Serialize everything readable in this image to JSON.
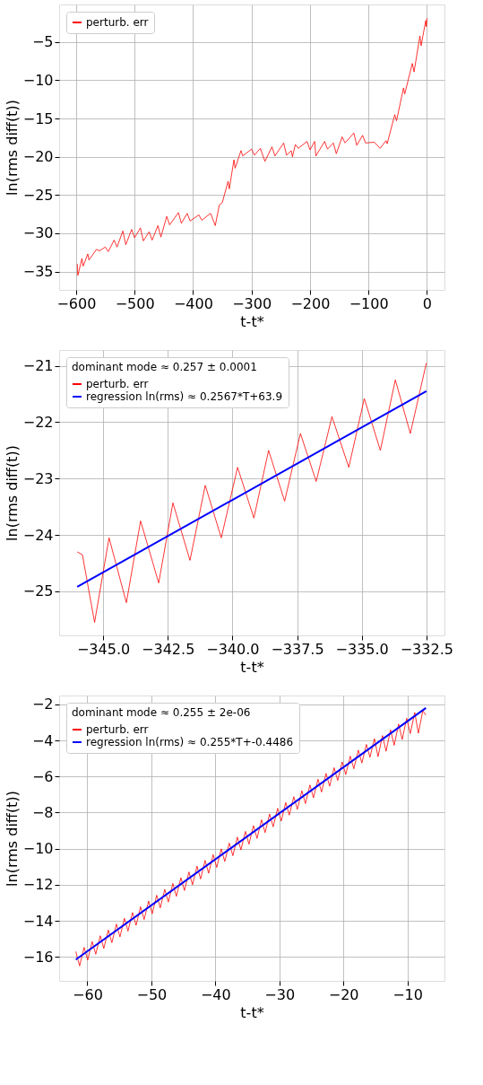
{
  "chart_data": [
    {
      "type": "line",
      "xlabel": "t-t*",
      "ylabel": "ln(rms diff(t))",
      "xlim": [
        -629,
        30
      ],
      "ylim": [
        -37.4,
        -0.1
      ],
      "xticks": [
        -600,
        -500,
        -400,
        -300,
        -200,
        -100,
        0
      ],
      "yticks": [
        -35,
        -30,
        -25,
        -20,
        -15,
        -10,
        -5
      ],
      "grid": true,
      "legend": "top left",
      "series": [
        {
          "name": "perturb. err",
          "color": "#ff0000",
          "x": [
            -598,
            -597,
            -590,
            -588,
            -580,
            -578,
            -565,
            -560,
            -550,
            -545,
            -535,
            -530,
            -520,
            -515,
            -505,
            -500,
            -490,
            -485,
            -475,
            -470,
            -460,
            -455,
            -445,
            -440,
            -425,
            -420,
            -410,
            -405,
            -390,
            -385,
            -370,
            -362,
            -355,
            -350,
            -340,
            -338,
            -330,
            -328,
            -318,
            -315,
            -300,
            -295,
            -285,
            -277,
            -265,
            -260,
            -245,
            -240,
            -232,
            -230,
            -225,
            -220,
            -205,
            -200,
            -192,
            -190,
            -175,
            -170,
            -160,
            -155,
            -145,
            -140,
            -125,
            -120,
            -110,
            -105,
            -90,
            -80,
            -70,
            -68,
            -55,
            -52,
            -40,
            -38,
            -25,
            -22,
            -12,
            -10,
            -2,
            -1,
            0
          ],
          "values": [
            -34.0,
            -35.5,
            -33.3,
            -34.3,
            -32.7,
            -33.5,
            -32.1,
            -32.3,
            -31.8,
            -32.4,
            -30.9,
            -31.8,
            -29.7,
            -31.5,
            -29.5,
            -30.6,
            -29.3,
            -31.0,
            -29.8,
            -30.9,
            -29.0,
            -30.5,
            -27.8,
            -28.9,
            -27.3,
            -28.7,
            -27.4,
            -28.4,
            -27.6,
            -28.3,
            -27.4,
            -29.0,
            -26.3,
            -26.0,
            -23.2,
            -24.2,
            -20.4,
            -21.5,
            -19.2,
            -19.9,
            -19.0,
            -19.8,
            -18.9,
            -20.6,
            -18.7,
            -19.9,
            -18.2,
            -19.8,
            -19.2,
            -20.0,
            -18.4,
            -18.9,
            -18.0,
            -19.1,
            -18.0,
            -19.9,
            -18.0,
            -19.0,
            -18.2,
            -19.6,
            -17.4,
            -18.2,
            -16.9,
            -18.5,
            -17.2,
            -18.2,
            -18.1,
            -18.9,
            -17.9,
            -18.3,
            -14.5,
            -15.3,
            -11.0,
            -11.8,
            -7.8,
            -8.9,
            -4.2,
            -5.5,
            -2.2,
            -3.0,
            -1.9
          ]
        }
      ]
    },
    {
      "type": "line",
      "xlabel": "t-t*",
      "ylabel": "ln(rms diff(t))",
      "xlim": [
        -346.7,
        -331.8
      ],
      "ylim": [
        -25.78,
        -20.72
      ],
      "xticks": [
        {
          "value": -345,
          "label": "−345.0"
        },
        {
          "value": -342.5,
          "label": "−342.5"
        },
        {
          "value": -340,
          "label": "−340.0"
        },
        {
          "value": -337.5,
          "label": "−337.5"
        },
        {
          "value": -335,
          "label": "−335.0"
        },
        {
          "value": -332.5,
          "label": "−332.5"
        }
      ],
      "yticks": [
        -25,
        -24,
        -23,
        -22,
        -21
      ],
      "grid": true,
      "legend": "top left",
      "legend_title": "dominant mode ≈ 0.257 ± 0.0001",
      "series": [
        {
          "name": "perturb. err",
          "color": "#ff0000",
          "x": [
            -346.0,
            -345.8,
            -345.33,
            -344.77,
            -344.1,
            -343.55,
            -342.85,
            -342.3,
            -341.64,
            -341.05,
            -340.43,
            -339.8,
            -339.17,
            -338.6,
            -337.98,
            -337.37,
            -336.76,
            -336.15,
            -335.5,
            -334.9,
            -334.28,
            -333.7,
            -333.12,
            -332.5
          ],
          "values": [
            -24.3,
            -24.35,
            -25.55,
            -24.05,
            -25.2,
            -23.75,
            -24.85,
            -23.43,
            -24.45,
            -23.12,
            -24.05,
            -22.8,
            -23.7,
            -22.5,
            -23.4,
            -22.2,
            -23.05,
            -21.9,
            -22.8,
            -21.58,
            -22.5,
            -21.25,
            -22.2,
            -20.95
          ]
        },
        {
          "name": "regression ln(rms) ≈ 0.2567*T+63.9",
          "color": "#0000ff",
          "x": [
            -346.0,
            -332.5
          ],
          "values": [
            -24.92,
            -21.45
          ]
        }
      ]
    },
    {
      "type": "line",
      "xlabel": "t-t*",
      "ylabel": "ln(rms diff(t))",
      "xlim": [
        -64.4,
        -4.2
      ],
      "ylim": [
        -17.33,
        -1.51
      ],
      "xticks": [
        -60,
        -50,
        -40,
        -30,
        -20,
        -10
      ],
      "yticks": [
        -16,
        -14,
        -12,
        -10,
        -8,
        -6,
        -4,
        -2
      ],
      "grid": true,
      "legend": "top left",
      "legend_title": "dominant mode ≈ 0.255 ± 2e-06",
      "series": [
        {
          "name": "perturb. err",
          "color": "#ff0000",
          "x": [
            -61.8,
            -61.2,
            -60.5,
            -59.94,
            -59.24,
            -58.68,
            -57.98,
            -57.42,
            -56.72,
            -56.16,
            -55.46,
            -54.9,
            -54.2,
            -53.64,
            -52.94,
            -52.38,
            -51.68,
            -51.12,
            -50.42,
            -49.86,
            -49.16,
            -48.6,
            -47.9,
            -47.34,
            -46.64,
            -46.08,
            -45.38,
            -44.82,
            -44.12,
            -43.56,
            -42.86,
            -42.3,
            -41.6,
            -41.04,
            -40.34,
            -39.78,
            -39.08,
            -38.52,
            -37.82,
            -37.26,
            -36.56,
            -36.0,
            -35.3,
            -34.74,
            -34.04,
            -33.48,
            -32.78,
            -32.22,
            -31.52,
            -30.96,
            -30.26,
            -29.7,
            -29.0,
            -28.44,
            -27.74,
            -27.18,
            -26.48,
            -25.92,
            -25.22,
            -24.66,
            -23.96,
            -23.4,
            -22.7,
            -22.14,
            -21.44,
            -20.88,
            -20.18,
            -19.62,
            -18.92,
            -18.36,
            -17.66,
            -17.1,
            -16.4,
            -15.84,
            -15.14,
            -14.58,
            -13.88,
            -13.32,
            -12.62,
            -12.06,
            -11.36,
            -10.8,
            -10.1,
            -9.54,
            -8.84,
            -8.28,
            -7.58,
            -7.1
          ],
          "values": [
            -15.7,
            -16.5,
            -15.47,
            -16.18,
            -15.15,
            -15.85,
            -14.83,
            -15.53,
            -14.51,
            -15.21,
            -14.18,
            -14.89,
            -13.86,
            -14.57,
            -13.54,
            -14.25,
            -13.22,
            -13.93,
            -12.9,
            -13.61,
            -12.58,
            -13.28,
            -12.26,
            -12.96,
            -11.93,
            -12.64,
            -11.61,
            -12.32,
            -11.29,
            -12.0,
            -10.97,
            -11.68,
            -10.65,
            -11.36,
            -10.33,
            -11.04,
            -10.01,
            -10.71,
            -9.69,
            -10.39,
            -9.36,
            -10.07,
            -9.04,
            -9.75,
            -8.72,
            -9.43,
            -8.4,
            -9.11,
            -8.08,
            -8.79,
            -7.76,
            -8.47,
            -7.44,
            -8.14,
            -7.12,
            -7.82,
            -6.79,
            -7.5,
            -6.47,
            -7.18,
            -6.15,
            -6.86,
            -5.83,
            -6.54,
            -5.51,
            -6.22,
            -5.19,
            -5.89,
            -4.87,
            -5.57,
            -4.54,
            -5.25,
            -4.22,
            -4.93,
            -3.9,
            -4.9,
            -3.73,
            -4.6,
            -3.41,
            -4.27,
            -3.09,
            -3.95,
            -2.77,
            -3.62,
            -2.45,
            -3.6,
            -2.35,
            -2.6
          ]
        },
        {
          "name": "regression ln(rms) ≈ 0.255*T+-0.4486",
          "color": "#0000ff",
          "x": [
            -61.8,
            -7.1
          ],
          "values": [
            -16.15,
            -2.2
          ]
        }
      ]
    }
  ]
}
